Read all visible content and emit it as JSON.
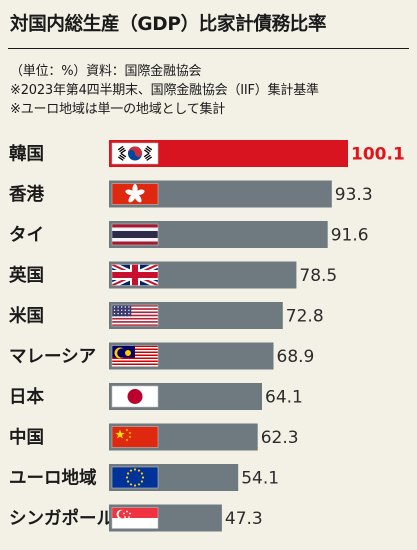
{
  "title": "対国内総生産（GDP）比家計債務比率",
  "notes": [
    "（単位：%）資料：国際金融協会",
    "※2023年第4四半期末、国際金融協会（IIF）集計基準",
    "※ユーロ地域は単一の地域として集計"
  ],
  "colors": {
    "bar": "#6f7a80",
    "highlight_bar": "#d81420",
    "highlight_label": "#e3121b",
    "background": "#f3f0e6"
  },
  "chart_data": {
    "type": "bar",
    "orientation": "horizontal",
    "title": "対国内総生産（GDP）比家計債務比率",
    "unit": "%",
    "categories": [
      "韓国",
      "香港",
      "タイ",
      "英国",
      "米国",
      "マレーシア",
      "日本",
      "中国",
      "ユーロ地域",
      "シンガポール"
    ],
    "values": [
      100.1,
      93.3,
      91.6,
      78.5,
      72.8,
      68.9,
      64.1,
      62.3,
      54.1,
      47.3
    ],
    "value_labels": [
      "100.1",
      "93.3",
      "91.6",
      "78.5",
      "72.8",
      "68.9",
      "64.1",
      "62.3",
      "54.1",
      "47.3"
    ],
    "flags": [
      "korea-flag",
      "hong-kong-flag",
      "thailand-flag",
      "uk-flag",
      "usa-flag",
      "malaysia-flag",
      "japan-flag",
      "china-flag",
      "eu-flag",
      "singapore-flag"
    ],
    "highlight_index": 0,
    "grid": false,
    "legend": "none"
  }
}
